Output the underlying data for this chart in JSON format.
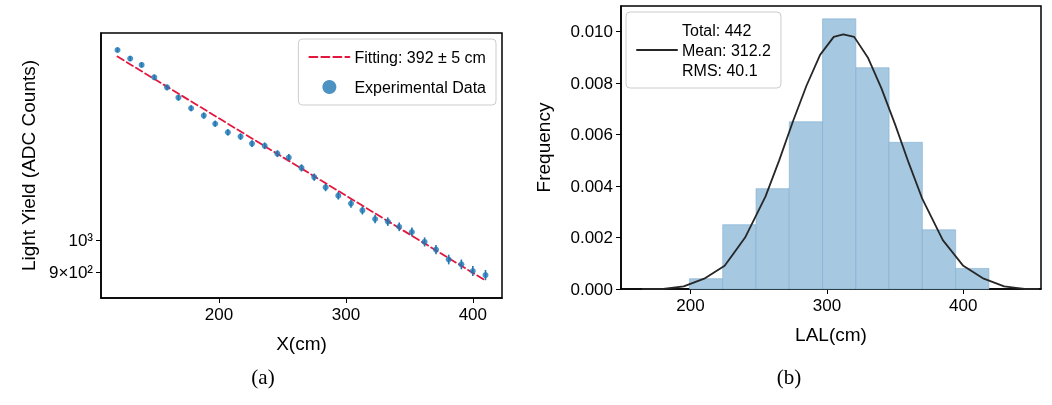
{
  "chart_data": [
    {
      "type": "scatter",
      "xlabel": "X(cm)",
      "ylabel": "Light Yield (ADC Counts)",
      "annotations": [
        "(a)"
      ],
      "log": "y",
      "xlim": [
        107,
        423
      ],
      "ylim": [
        828,
        1982
      ],
      "xticks": [
        200,
        300,
        400
      ],
      "yticks": [
        {
          "value": 900,
          "label": "9×10²"
        },
        {
          "value": 1000,
          "label": "10³"
        }
      ],
      "grid": false,
      "legend": "top right",
      "series": [
        {
          "name": "Fitting: 392 ± 5 cm",
          "type": "line",
          "color": "#e3173e",
          "line_style": "dashed",
          "marker": "none",
          "x": [
            120,
            410
          ],
          "values": [
            1834,
            877
          ]
        },
        {
          "name": "Experimental Data",
          "type": "scatter",
          "color": "#1f77b4",
          "marker": "circle",
          "x": [
            120,
            130,
            139,
            149,
            159,
            168,
            178,
            188,
            197,
            207,
            217,
            226,
            236,
            246,
            255,
            265,
            275,
            284,
            294,
            304,
            313,
            323,
            333,
            342,
            352,
            362,
            371,
            381,
            391,
            400,
            410
          ],
          "values": [
            1874,
            1822,
            1784,
            1713,
            1657,
            1602,
            1547,
            1510,
            1470,
            1429,
            1409,
            1377,
            1367,
            1332,
            1315,
            1271,
            1233,
            1192,
            1160,
            1130,
            1105,
            1074,
            1065,
            1047,
            1029,
            996,
            971,
            940,
            925,
            905,
            893
          ],
          "errors": [
            15,
            15,
            15,
            15,
            15,
            15,
            15,
            15,
            15,
            15,
            15,
            15,
            15,
            15,
            15,
            15,
            15,
            15,
            15,
            15,
            15,
            15,
            15,
            15,
            15,
            15,
            15,
            15,
            15,
            15,
            15
          ]
        }
      ]
    },
    {
      "type": "histogram",
      "xlabel": "LAL(cm)",
      "ylabel": "Frequency",
      "annotations": [
        "(b)"
      ],
      "bins": [
        199.2,
        223.6,
        248,
        272.4,
        296.8,
        321.2,
        345.6,
        370,
        394.4,
        418.8
      ],
      "values": [
        0.0004,
        0.0025,
        0.0039,
        0.0065,
        0.0105,
        0.0086,
        0.0057,
        0.0023,
        0.0008
      ],
      "color": "#a6c8e1",
      "xlim": [
        149,
        457
      ],
      "ylim": [
        0,
        0.011
      ],
      "xticks": [
        200,
        300,
        400
      ],
      "yticks": [
        {
          "value": 0,
          "label": "0.000"
        },
        {
          "value": 0.002,
          "label": "0.002"
        },
        {
          "value": 0.004,
          "label": "0.004"
        },
        {
          "value": 0.006,
          "label": "0.006"
        },
        {
          "value": 0.008,
          "label": "0.008"
        },
        {
          "value": 0.01,
          "label": "0.010"
        }
      ],
      "grid": false,
      "legend": "top left",
      "series": [
        {
          "name": "Total: 442\nMean: 312.2\nRMS: 40.1",
          "type": "line",
          "color": "#262626",
          "marker": "none",
          "x": [
            165,
            180,
            195,
            210,
            225,
            240,
            255,
            265,
            275,
            285,
            295,
            305,
            312,
            320,
            330,
            340,
            350,
            360,
            370,
            385,
            400,
            415,
            430,
            445,
            455
          ],
          "values": [
            0,
            0,
            0.0001,
            0.0004,
            0.0009,
            0.002,
            0.0036,
            0.005,
            0.0065,
            0.0079,
            0.0091,
            0.0098,
            0.0099,
            0.0098,
            0.009,
            0.0078,
            0.0064,
            0.0049,
            0.0035,
            0.0019,
            0.0009,
            0.0004,
            0.0001,
            0,
            0
          ]
        }
      ]
    }
  ]
}
